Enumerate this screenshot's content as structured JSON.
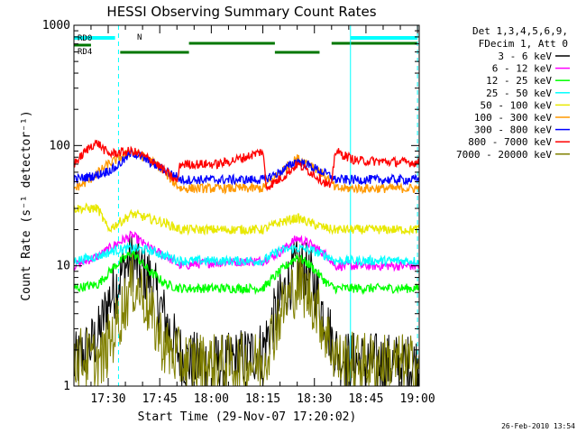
{
  "chart_data": {
    "type": "line",
    "title": "HESSI Observing Summary Count Rates",
    "xlabel": "Start Time (29-Nov-07 17:20:02)",
    "ylabel": "Count Rate (s⁻¹ detector⁻¹)",
    "y_scale": "log",
    "ylim": [
      1,
      1000
    ],
    "xlim_min": [
      20.03,
      120.5
    ],
    "x_ticks": [
      "17:30",
      "17:45",
      "18:00",
      "18:15",
      "18:30",
      "18:45",
      "19:00"
    ],
    "x_tick_min": [
      30,
      45,
      60,
      75,
      90,
      105,
      120
    ],
    "y_ticks": [
      "1",
      "10",
      "100",
      "1000"
    ],
    "timestamp": "26-Feb-2010 13:54",
    "legend": {
      "header": [
        "Det 1,3,4,5,6,9,",
        "FDecim 1, Att 0"
      ],
      "placement": "right"
    },
    "series": [
      {
        "name": "3 - 6 keV",
        "color": "#000000",
        "knots": [
          [
            20,
            1.5
          ],
          [
            27,
            2.5
          ],
          [
            30,
            5
          ],
          [
            35,
            10
          ],
          [
            37,
            11
          ],
          [
            42,
            8
          ],
          [
            46,
            4
          ],
          [
            50,
            2
          ],
          [
            53,
            1.6
          ],
          [
            64,
            1.5
          ],
          [
            75,
            2
          ],
          [
            80,
            5
          ],
          [
            84,
            9
          ],
          [
            86,
            10
          ],
          [
            90,
            7
          ],
          [
            94,
            3
          ],
          [
            96,
            2
          ],
          [
            100,
            1.6
          ],
          [
            120,
            1.5
          ]
        ]
      },
      {
        "name": "6 - 12 keV",
        "color": "#ff00ff",
        "knots": [
          [
            20,
            10
          ],
          [
            27,
            12
          ],
          [
            32,
            15
          ],
          [
            37,
            18
          ],
          [
            42,
            14
          ],
          [
            47,
            12
          ],
          [
            51,
            10
          ],
          [
            58,
            10.5
          ],
          [
            75,
            11
          ],
          [
            80,
            13
          ],
          [
            85,
            17
          ],
          [
            89,
            15
          ],
          [
            94,
            12
          ],
          [
            96,
            10
          ],
          [
            120,
            10
          ]
        ]
      },
      {
        "name": "12 - 25 keV",
        "color": "#00ff00",
        "knots": [
          [
            20,
            6.5
          ],
          [
            27,
            7
          ],
          [
            32,
            10
          ],
          [
            37,
            13
          ],
          [
            42,
            9
          ],
          [
            47,
            7
          ],
          [
            51,
            6.5
          ],
          [
            75,
            6.5
          ],
          [
            80,
            9
          ],
          [
            85,
            12
          ],
          [
            89,
            10
          ],
          [
            94,
            7
          ],
          [
            96,
            6.5
          ],
          [
            120,
            6.5
          ]
        ]
      },
      {
        "name": "25 - 50 keV",
        "color": "#00ffff",
        "knots": [
          [
            20,
            11
          ],
          [
            27,
            12
          ],
          [
            32,
            13.5
          ],
          [
            37,
            14
          ],
          [
            42,
            13.5
          ],
          [
            47,
            12
          ],
          [
            51,
            11
          ],
          [
            58,
            11
          ],
          [
            75,
            11
          ],
          [
            80,
            13.5
          ],
          [
            85,
            14
          ],
          [
            89,
            13.5
          ],
          [
            94,
            12
          ],
          [
            96,
            11
          ],
          [
            120,
            11
          ]
        ]
      },
      {
        "name": "50 - 100 keV",
        "color": "#e8e800",
        "knots": [
          [
            20,
            30
          ],
          [
            27,
            30
          ],
          [
            30,
            20
          ],
          [
            37,
            27
          ],
          [
            46,
            23
          ],
          [
            51,
            20
          ],
          [
            58,
            20
          ],
          [
            75,
            20
          ],
          [
            80,
            23
          ],
          [
            85,
            25
          ],
          [
            90,
            22
          ],
          [
            95,
            20
          ],
          [
            120,
            20
          ]
        ]
      },
      {
        "name": "100 - 300 keV",
        "color": "#ff9900",
        "knots": [
          [
            20,
            44
          ],
          [
            24,
            50
          ],
          [
            30,
            70
          ],
          [
            37,
            90
          ],
          [
            44,
            70
          ],
          [
            49,
            50
          ],
          [
            51,
            44
          ],
          [
            58,
            44
          ],
          [
            75,
            44
          ],
          [
            80,
            60
          ],
          [
            85,
            78
          ],
          [
            89,
            70
          ],
          [
            95,
            50
          ],
          [
            96,
            44
          ],
          [
            120,
            44
          ]
        ]
      },
      {
        "name": "300 - 800 keV",
        "color": "#0000ff",
        "knots": [
          [
            20,
            52
          ],
          [
            27,
            57
          ],
          [
            32,
            65
          ],
          [
            37,
            88
          ],
          [
            44,
            68
          ],
          [
            50,
            55
          ],
          [
            51,
            52
          ],
          [
            62,
            52
          ],
          [
            75,
            52
          ],
          [
            80,
            60
          ],
          [
            85,
            75
          ],
          [
            90,
            65
          ],
          [
            95,
            55
          ],
          [
            96,
            52
          ],
          [
            120,
            52
          ]
        ]
      },
      {
        "name": "800 - 7000 keV",
        "color": "#ff0000",
        "knots": [
          [
            20,
            70
          ],
          [
            21,
            75
          ],
          [
            25,
            100
          ],
          [
            27,
            105
          ],
          [
            30,
            85
          ],
          [
            37,
            90
          ],
          [
            43,
            75
          ],
          [
            50,
            50
          ],
          [
            51,
            70
          ],
          [
            62,
            70
          ],
          [
            70,
            80
          ],
          [
            75,
            90
          ],
          [
            76,
            45
          ],
          [
            81,
            55
          ],
          [
            85,
            70
          ],
          [
            89,
            60
          ],
          [
            95,
            45
          ],
          [
            96,
            90
          ],
          [
            102,
            75
          ],
          [
            120,
            72
          ]
        ]
      },
      {
        "name": "7000 - 20000 keV",
        "color": "#808000",
        "knots": [
          [
            20,
            1.8
          ],
          [
            28,
            1.6
          ],
          [
            32,
            3
          ],
          [
            35,
            5
          ],
          [
            37,
            7
          ],
          [
            40,
            6
          ],
          [
            43,
            3.5
          ],
          [
            47,
            2
          ],
          [
            52,
            1.6
          ],
          [
            64,
            1.5
          ],
          [
            75,
            1.6
          ],
          [
            80,
            4
          ],
          [
            84,
            6.5
          ],
          [
            86,
            7
          ],
          [
            90,
            5
          ],
          [
            94,
            2.5
          ],
          [
            97,
            1.6
          ],
          [
            120,
            1.5
          ]
        ]
      }
    ]
  },
  "legend_labels": [
    "3 - 6 keV",
    "6 - 12 keV",
    "12 - 25 keV",
    "25 - 50 keV",
    "50 - 100 keV",
    "100 - 300 keV",
    "300 - 800 keV",
    "800 - 7000 keV",
    "7000 - 20000 keV"
  ],
  "status_bars": {
    "n_label": "N",
    "rd0_label": "RD0",
    "rd4_label": "RD4",
    "cyan_color": "#00ffff",
    "green_color": "#007700",
    "night_segments_min": [
      [
        20.03,
        32
      ],
      [
        100.5,
        120
      ]
    ],
    "rd0_segments_min": [
      [
        53.5,
        78.5
      ],
      [
        95,
        120
      ]
    ],
    "rd4_segments_min": [
      [
        20.03,
        25
      ],
      [
        33.5,
        53.5
      ],
      [
        78.5,
        91.5
      ]
    ],
    "cyan_vertical_solid_min": [
      100.5
    ],
    "cyan_vertical_dashed_min": [
      33,
      120
    ]
  }
}
